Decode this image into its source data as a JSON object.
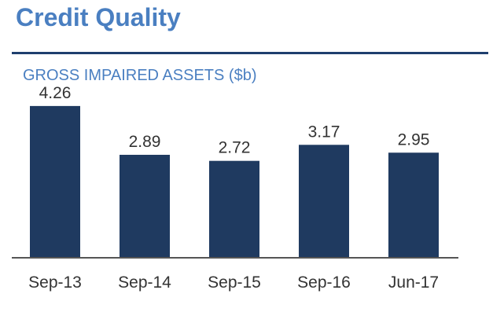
{
  "header": {
    "title": "Credit Quality"
  },
  "colors": {
    "title": "#4a7fc1",
    "bar": "#1f3a60",
    "rule": "#1f3f6e",
    "text": "#333333"
  },
  "chart_data": {
    "type": "bar",
    "title": "GROSS IMPAIRED ASSETS ($b)",
    "xlabel": "",
    "ylabel": "",
    "categories": [
      "Sep-13",
      "Sep-14",
      "Sep-15",
      "Sep-16",
      "Jun-17"
    ],
    "values": [
      4.26,
      2.89,
      2.72,
      3.17,
      2.95
    ],
    "ylim": [
      0,
      4.5
    ],
    "grid": false,
    "legend": "none"
  }
}
